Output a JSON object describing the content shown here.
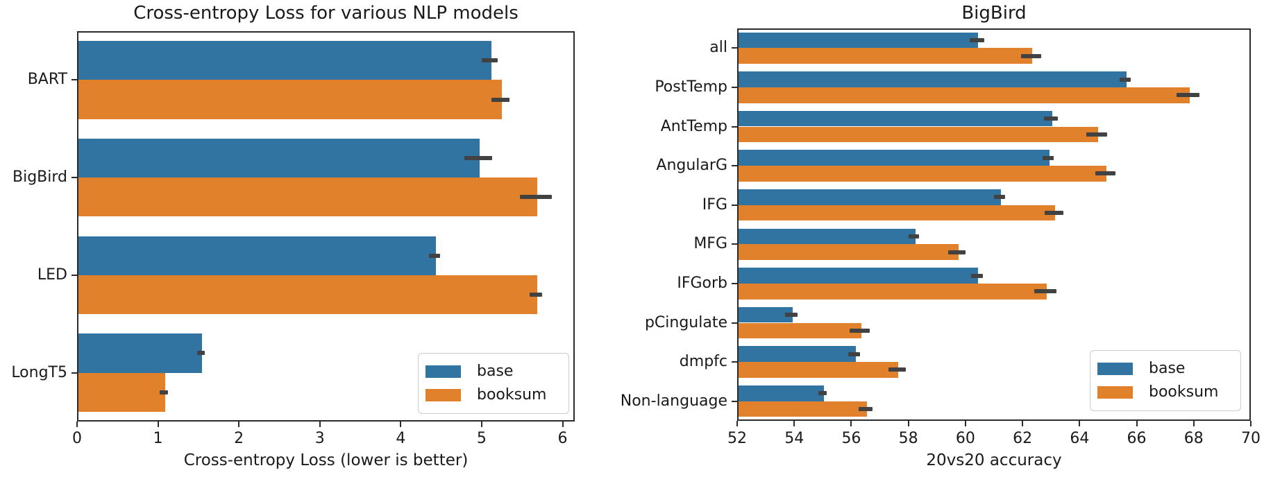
{
  "figure_background": "#ffffff",
  "colors": {
    "base": "#3274a1",
    "booksum": "#e1812c",
    "error_bar": "#424242",
    "spine": "#2b2b2b",
    "text": "#1a1a1a",
    "legend_border": "#cccccc"
  },
  "chart_data": [
    {
      "type": "bar",
      "orientation": "horizontal",
      "title": "Cross-entropy Loss for various NLP models",
      "xlabel": "Cross-entropy Loss (lower is better)",
      "categories": [
        "BART",
        "BigBird",
        "LED",
        "LongT5"
      ],
      "series": [
        {
          "name": "base",
          "values": [
            5.1,
            4.96,
            4.42,
            1.53
          ],
          "errors": [
            0.1,
            0.17,
            0.07,
            0.05
          ]
        },
        {
          "name": "booksum",
          "values": [
            5.23,
            5.67,
            5.67,
            1.07
          ],
          "errors": [
            0.11,
            0.2,
            0.08,
            0.05
          ]
        }
      ],
      "xlim": [
        0,
        6.15
      ],
      "xticks": [
        0,
        1,
        2,
        3,
        4,
        5,
        6
      ],
      "grid": false,
      "legend": [
        "base",
        "booksum"
      ],
      "legend_position": "lower right"
    },
    {
      "type": "bar",
      "orientation": "horizontal",
      "title": "BigBird",
      "xlabel": "20vs20 accuracy",
      "categories": [
        "all",
        "PostTemp",
        "AntTemp",
        "AngularG",
        "IFG",
        "MFG",
        "IFGorb",
        "pCingulate",
        "dmpfc",
        "Non-language"
      ],
      "series": [
        {
          "name": "base",
          "values": [
            60.4,
            65.6,
            63.0,
            62.9,
            61.2,
            58.2,
            60.4,
            53.9,
            56.1,
            55.0
          ],
          "errors": [
            0.25,
            0.2,
            0.25,
            0.2,
            0.2,
            0.18,
            0.2,
            0.21,
            0.2,
            0.15
          ]
        },
        {
          "name": "booksum",
          "values": [
            62.3,
            67.8,
            64.6,
            64.9,
            63.1,
            59.7,
            62.8,
            56.3,
            57.6,
            56.5
          ],
          "errors": [
            0.35,
            0.4,
            0.36,
            0.35,
            0.33,
            0.3,
            0.38,
            0.35,
            0.3,
            0.25
          ]
        }
      ],
      "xlim": [
        52,
        70
      ],
      "xticks": [
        52,
        54,
        56,
        58,
        60,
        62,
        64,
        66,
        68,
        70
      ],
      "grid": false,
      "legend": [
        "base",
        "booksum"
      ],
      "legend_position": "lower right"
    }
  ]
}
